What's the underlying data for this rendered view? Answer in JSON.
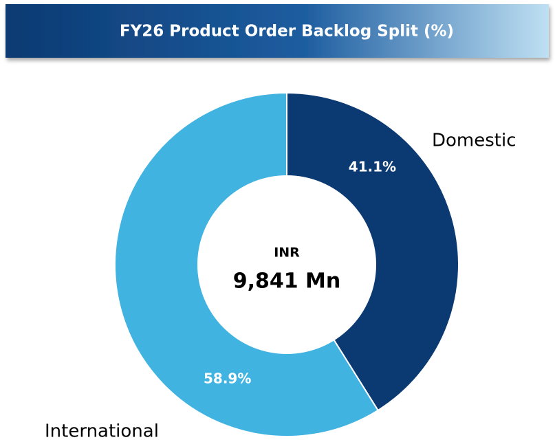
{
  "chart_data": {
    "type": "pie",
    "title": "FY26 Product Order Backlog Split (%)",
    "categories": [
      "Domestic",
      "International"
    ],
    "values": [
      41.1,
      58.9
    ],
    "value_labels": [
      "41.1%",
      "58.9%"
    ],
    "colors": [
      "#0b3a72",
      "#41b3e1"
    ],
    "center_title": "INR",
    "center_value": "9,841 Mn"
  }
}
